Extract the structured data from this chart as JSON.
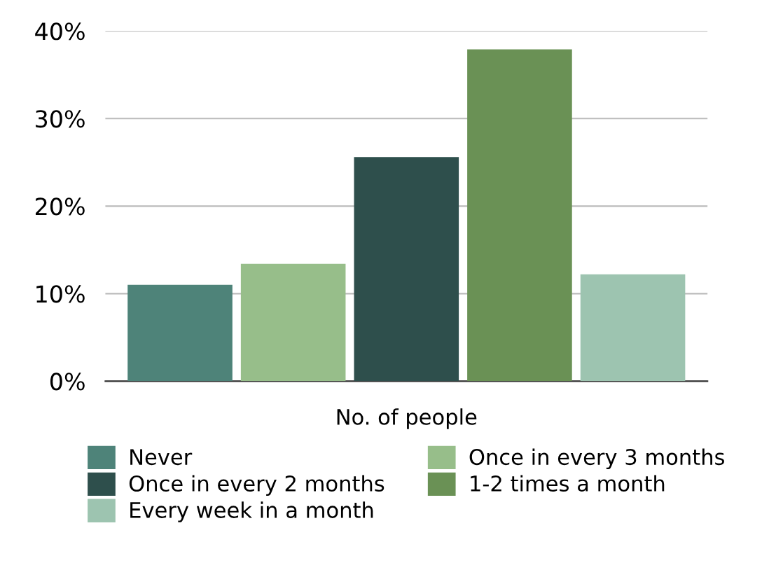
{
  "chart_data": {
    "type": "bar",
    "categories": [
      "No. of people"
    ],
    "series": [
      {
        "name": "Never",
        "color": "#4e8379",
        "values": [
          11.0
        ]
      },
      {
        "name": "Once in every 3 months",
        "color": "#97be8a",
        "values": [
          13.4
        ]
      },
      {
        "name": "Once in every 2 months",
        "color": "#2e4f4c",
        "values": [
          25.6
        ]
      },
      {
        "name": "1-2 times a month",
        "color": "#6a9155",
        "values": [
          37.9
        ]
      },
      {
        "name": "Every week in a month",
        "color": "#9dc4b0",
        "values": [
          12.2
        ]
      }
    ],
    "ylim": [
      0,
      40
    ],
    "yticks": [
      {
        "value": 0,
        "label": "0%"
      },
      {
        "value": 10,
        "label": "10%"
      },
      {
        "value": 20,
        "label": "20%"
      },
      {
        "value": 30,
        "label": "30%"
      },
      {
        "value": 40,
        "label": "40%"
      }
    ],
    "grid": "y",
    "legend": "bottom"
  }
}
